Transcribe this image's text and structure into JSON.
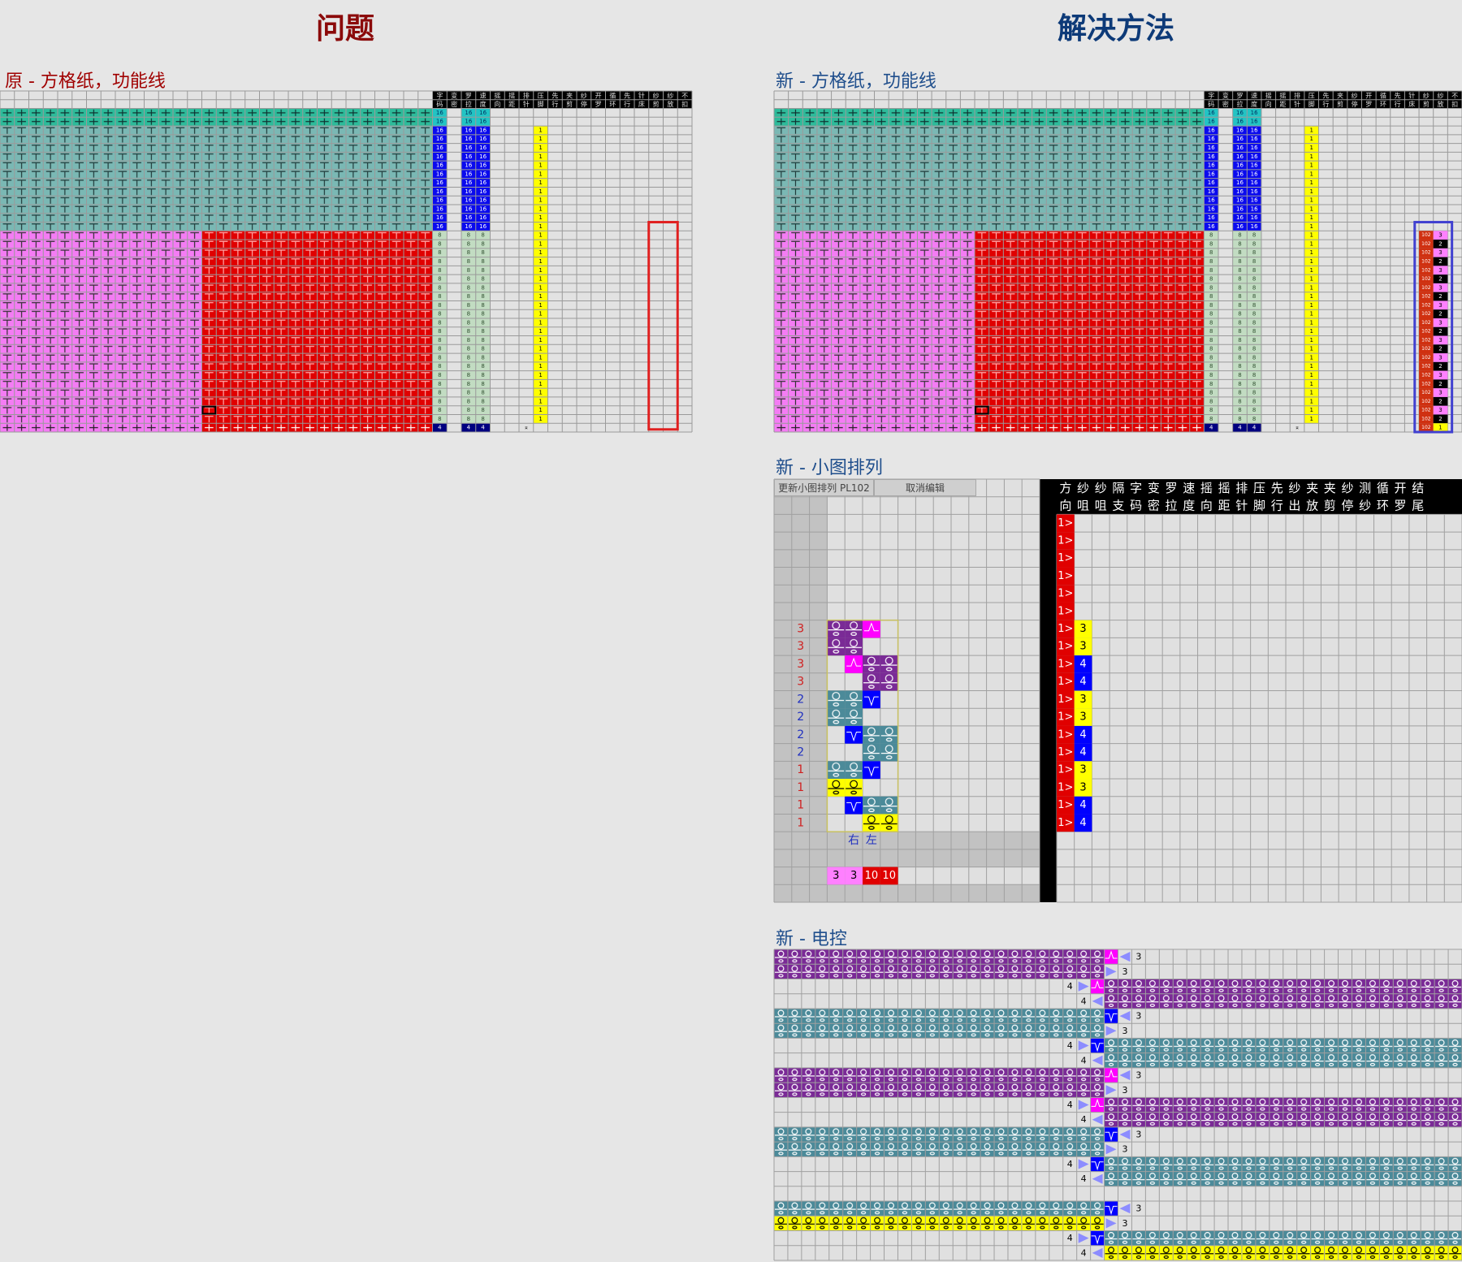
{
  "titles": {
    "problem": "问题",
    "solution": "解决方法"
  },
  "section_labels": {
    "original_paper": "原 - 方格纸，功能线",
    "new_paper": "新 - 方格纸，功能线",
    "new_arrangement": "新 - 小图排列",
    "new_control": "新 - 电控"
  },
  "colors": {
    "problem_title": "#8b0a0a",
    "solution_title": "#0d3a78",
    "problem_label": "#a00000",
    "solution_label": "#1f4e8c",
    "highlight_problem": "#e02020",
    "highlight_solution": "#4040d0",
    "purple": "#7a2a96",
    "teal": "#4b8a99",
    "yellow": "#ffff00",
    "magenta": "#ff00ff",
    "blue": "#0000ff",
    "red": "#e00000",
    "triangle": "#8c8cff"
  },
  "paper": {
    "header_top": [
      "字",
      "变",
      "罗",
      "速",
      "摇",
      "摇",
      "排",
      "压",
      "先",
      "夹",
      "纱",
      "开",
      "循",
      "先",
      "针",
      "纱",
      "纱",
      "不"
    ],
    "header_bottom": [
      "码",
      "密",
      "拉",
      "度",
      "向",
      "距",
      "针",
      "脚",
      "行",
      "剪",
      "停",
      "罗",
      "环",
      "行",
      "床",
      "剪",
      "放",
      "扣"
    ],
    "bands": [
      {
        "band": "green",
        "rows": 2,
        "symbol": "plus",
        "left_color": "#2dbb9a",
        "right_color": "#2dbb9a",
        "symbol_left": "#103030",
        "symbol_right": "#103030",
        "value_bg": "#22c4c4",
        "value_fg": "#003060",
        "values": {
          "0": "16",
          "2": "16",
          "3": "16"
        }
      },
      {
        "band": "teal",
        "rows": 12,
        "symbol": "tee",
        "left_color": "#7ab8b4",
        "right_color": "#7ab8b4",
        "symbol_left": "#203838",
        "symbol_right": "#203838",
        "value_bg": "#0a0aee",
        "value_fg": "#ffffff",
        "values": {
          "0": "16",
          "2": "16",
          "3": "16",
          "7": "1"
        }
      },
      {
        "band": "pink-red",
        "rows": 22,
        "symbol": "tee",
        "left_color": "#f47cf4",
        "right_color": "#e00000",
        "symbol_left": "#303030",
        "symbol_right": "#ffb0b0",
        "value_bg": "#c2dcc2",
        "value_fg": "#305030",
        "values": {
          "0": "8",
          "2": "8",
          "3": "8",
          "7": "1"
        }
      },
      {
        "band": "last",
        "rows": 1,
        "symbol": "plus",
        "left_color": "#f47cf4",
        "right_color": "#e00000",
        "symbol_left": "#202020",
        "symbol_right": "#ffffff",
        "value_bg": "#000080",
        "value_fg": "#ffffff",
        "values": {
          "0": "4",
          "2": "4",
          "3": "4",
          "6": "⌅"
        }
      }
    ],
    "column_styles": {
      "7": {
        "bg": "#ffff00",
        "fg": "#000000"
      },
      "6": {
        "bg": "none",
        "fg": "#000000"
      }
    },
    "pl_column": {
      "code": "102",
      "code_bg": "#d03010",
      "values": [
        "3",
        "2",
        "3",
        "2",
        "3",
        "2",
        "3",
        "2",
        "3",
        "2",
        "3",
        "2",
        "3",
        "2",
        "3",
        "2",
        "3",
        "2",
        "3",
        "2",
        "3",
        "2",
        "1"
      ],
      "value_styles": {
        "3": {
          "bg": "#ff80ff",
          "fg": "#000"
        },
        "2": {
          "bg": "#000000",
          "fg": "#fff"
        },
        "1": {
          "bg": "#ffff00",
          "fg": "#000"
        }
      }
    }
  },
  "arrangement": {
    "buttons": {
      "update": "更新小图排列 PL102",
      "cancel": "取消编辑"
    },
    "header_top": [
      "方",
      "纱",
      "纱",
      "隔",
      "字",
      "变",
      "罗",
      "速",
      "摇",
      "摇",
      "排",
      "压",
      "先",
      "纱",
      "夹",
      "夹",
      "纱",
      "测",
      "循",
      "开",
      "结"
    ],
    "header_bottom": [
      "向",
      "咀",
      "咀",
      "支",
      "码",
      "密",
      "拉",
      "度",
      "向",
      "距",
      "针",
      "脚",
      "行",
      "出",
      "放",
      "剪",
      "停",
      "纱",
      "环",
      "罗",
      "尾"
    ],
    "direction": "1>",
    "label_colors": {
      "3": "#d02020",
      "2": "#2030c0",
      "1": "#d02020"
    },
    "yarn_styles": {
      "3": {
        "bg": "#ffff00",
        "fg": "#000"
      },
      "4": {
        "bg": "#0000ff",
        "fg": "#fff"
      }
    },
    "rows": [
      {
        "label": "",
        "cells": [
          "",
          "",
          "",
          ""
        ],
        "yarn": ""
      },
      {
        "label": "",
        "cells": [
          "",
          "",
          "",
          ""
        ],
        "yarn": ""
      },
      {
        "label": "",
        "cells": [
          "",
          "",
          "",
          ""
        ],
        "yarn": ""
      },
      {
        "label": "",
        "cells": [
          "",
          "",
          "",
          ""
        ],
        "yarn": ""
      },
      {
        "label": "",
        "cells": [
          "",
          "",
          "",
          ""
        ],
        "yarn": ""
      },
      {
        "label": "",
        "cells": [
          "",
          "",
          "",
          ""
        ],
        "yarn": ""
      },
      {
        "label": "3",
        "cells": [
          "purple",
          "purple",
          "peak",
          ""
        ],
        "yarn": "3"
      },
      {
        "label": "3",
        "cells": [
          "purple",
          "purple",
          "",
          ""
        ],
        "yarn": "3"
      },
      {
        "label": "3",
        "cells": [
          "",
          "peak",
          "purple",
          "purple"
        ],
        "yarn": "4"
      },
      {
        "label": "3",
        "cells": [
          "",
          "",
          "purple",
          "purple"
        ],
        "yarn": "4"
      },
      {
        "label": "2",
        "cells": [
          "teal",
          "teal",
          "valley",
          ""
        ],
        "yarn": "3"
      },
      {
        "label": "2",
        "cells": [
          "teal",
          "teal",
          "",
          ""
        ],
        "yarn": "3"
      },
      {
        "label": "2",
        "cells": [
          "",
          "valley",
          "teal",
          "teal"
        ],
        "yarn": "4"
      },
      {
        "label": "2",
        "cells": [
          "",
          "",
          "teal",
          "teal"
        ],
        "yarn": "4"
      },
      {
        "label": "1",
        "cells": [
          "teal",
          "teal",
          "valley",
          ""
        ],
        "yarn": "3"
      },
      {
        "label": "1",
        "cells": [
          "yellow",
          "yellow",
          "",
          ""
        ],
        "yarn": "3"
      },
      {
        "label": "1",
        "cells": [
          "",
          "valley",
          "teal",
          "teal"
        ],
        "yarn": "4"
      },
      {
        "label": "1",
        "cells": [
          "",
          "",
          "yellow",
          "yellow"
        ],
        "yarn": "4"
      }
    ],
    "side_labels": [
      "右",
      "左"
    ],
    "totals": [
      {
        "value": "3",
        "bg": "#ff80ff",
        "fg": "#000"
      },
      {
        "value": "3",
        "bg": "#ff80ff",
        "fg": "#000"
      },
      {
        "value": "10",
        "bg": "#e00000",
        "fg": "#fff"
      },
      {
        "value": "10",
        "bg": "#e00000",
        "fg": "#fff"
      }
    ]
  },
  "control": {
    "rows": [
      {
        "side": "L",
        "fill": "purple",
        "mark": "peak",
        "num": "3"
      },
      {
        "side": "L",
        "fill": "purple",
        "mark": "",
        "num": "3"
      },
      {
        "side": "R",
        "fill": "purple",
        "mark": "peak",
        "num": "4"
      },
      {
        "side": "R",
        "fill": "purple",
        "mark": "",
        "num": "4"
      },
      {
        "side": "L",
        "fill": "teal",
        "mark": "valley",
        "num": "3"
      },
      {
        "side": "L",
        "fill": "teal",
        "mark": "",
        "num": "3"
      },
      {
        "side": "R",
        "fill": "teal",
        "mark": "valley",
        "num": "4"
      },
      {
        "side": "R",
        "fill": "teal",
        "mark": "",
        "num": "4"
      },
      {
        "side": "L",
        "fill": "purple",
        "mark": "peak",
        "num": "3"
      },
      {
        "side": "L",
        "fill": "purple",
        "mark": "",
        "num": "3"
      },
      {
        "side": "R",
        "fill": "purple",
        "mark": "peak",
        "num": "4"
      },
      {
        "side": "R",
        "fill": "purple",
        "mark": "",
        "num": "4"
      },
      {
        "side": "L",
        "fill": "teal",
        "mark": "valley",
        "num": "3"
      },
      {
        "side": "L",
        "fill": "teal",
        "mark": "",
        "num": "3"
      },
      {
        "side": "R",
        "fill": "teal",
        "mark": "valley",
        "num": "4"
      },
      {
        "side": "R",
        "fill": "teal",
        "mark": "",
        "num": "4"
      },
      {
        "side": "",
        "fill": "",
        "mark": "",
        "num": ""
      },
      {
        "side": "L",
        "fill": "teal",
        "mark": "valley",
        "num": "3"
      },
      {
        "side": "L",
        "fill": "yellow",
        "mark": "",
        "num": "3"
      },
      {
        "side": "R",
        "fill": "teal",
        "mark": "valley",
        "num": "4"
      },
      {
        "side": "R",
        "fill": "yellow",
        "mark": "",
        "num": "4"
      }
    ]
  }
}
